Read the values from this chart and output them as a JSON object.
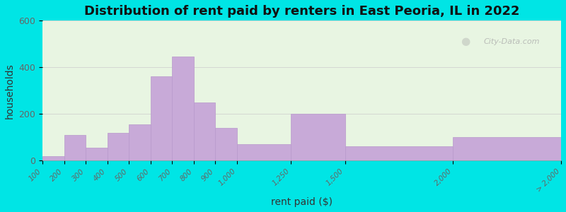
{
  "title": "Distribution of rent paid by renters in East Peoria, IL in 2022",
  "xlabel": "rent paid ($)",
  "ylabel": "households",
  "bar_color": "#c8aad8",
  "bar_edge_color": "#b898cc",
  "background_outer": "#00e5e5",
  "ylim": [
    0,
    600
  ],
  "yticks": [
    0,
    200,
    400,
    600
  ],
  "watermark_text": "City-Data.com",
  "title_fontsize": 13,
  "axis_label_fontsize": 10,
  "tick_label_color": "#666666",
  "edges": [
    100,
    200,
    300,
    400,
    500,
    600,
    700,
    800,
    900,
    1000,
    1250,
    1500,
    2000,
    2500
  ],
  "values": [
    20,
    110,
    55,
    120,
    155,
    360,
    445,
    250,
    140,
    70,
    200,
    60,
    100
  ],
  "tick_labels": [
    "100",
    "200",
    "300",
    "400",
    "500",
    "600",
    "700",
    "800",
    "900",
    "1,000",
    "1,250",
    "1,500",
    "2,000",
    "> 2,000"
  ],
  "bg_color_top": "#e8f5e0",
  "bg_color_bottom": "#d8ecd8"
}
